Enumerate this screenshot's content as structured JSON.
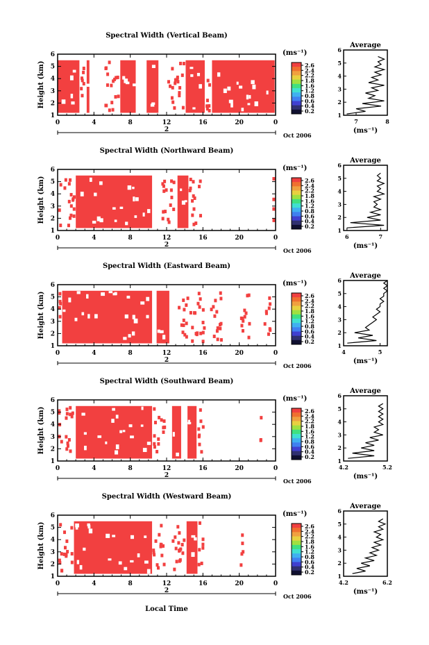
{
  "figure": {
    "x_axis_label": "Local Time",
    "colorbar_unit": "(ms⁻¹)",
    "colorbar_ticks": [
      "2.6",
      "2.4",
      "2.2",
      "1.8",
      "1.6",
      "1.2",
      "0.8",
      "0.6",
      "0.4",
      "0.2"
    ],
    "average_title": "Average",
    "average_unit": "(ms⁻¹)",
    "day_label": "2",
    "month_label": "Oct 2006"
  },
  "chart_data": [
    {
      "type": "heatmap",
      "title": "Spectral Width (Vertical Beam)",
      "ylabel": "Height (km)",
      "xlabel": "",
      "xlim": [
        0,
        24
      ],
      "ylim": [
        1,
        6
      ],
      "xticks": [
        "0",
        "4",
        "8",
        "12",
        "16",
        "20",
        "0"
      ],
      "yticks": [
        "1",
        "2",
        "3",
        "4",
        "5",
        "6"
      ],
      "height_range": [
        1.2,
        5.5
      ],
      "fill_runs": [
        [
          0,
          2.4
        ],
        [
          3.2,
          3.5
        ],
        [
          6.9,
          8.6
        ],
        [
          9.8,
          11.1
        ],
        [
          14.1,
          16.2
        ],
        [
          17.0,
          23.9
        ]
      ],
      "sparse_runs": [
        [
          2.4,
          3.2
        ],
        [
          5.0,
          6.9
        ],
        [
          12.0,
          14.1
        ],
        [
          16.2,
          17.0
        ]
      ],
      "color": "#f24040",
      "average": {
        "xlim": [
          6.6,
          8
        ],
        "xticks": [
          "7",
          "8"
        ],
        "ylim": [
          1,
          6
        ],
        "heights": [
          1.1,
          1.3,
          1.5,
          1.7,
          1.9,
          2.1,
          2.3,
          2.5,
          2.7,
          2.9,
          3.1,
          3.3,
          3.5,
          3.7,
          3.9,
          4.1,
          4.3,
          4.5,
          4.7,
          4.9,
          5.1,
          5.3,
          5.5
        ],
        "values": [
          6.7,
          7.3,
          7.0,
          7.8,
          7.2,
          7.9,
          7.4,
          7.6,
          7.3,
          7.7,
          7.5,
          7.9,
          7.4,
          7.7,
          7.5,
          7.8,
          7.6,
          7.9,
          7.6,
          7.8,
          7.7,
          7.9,
          7.7
        ]
      }
    },
    {
      "type": "heatmap",
      "title": "Spectral Width (Northward Beam)",
      "ylabel": "Height (km)",
      "xlabel": "",
      "xlim": [
        0,
        24
      ],
      "ylim": [
        1,
        6
      ],
      "xticks": [
        "0",
        "4",
        "8",
        "12",
        "16",
        "20",
        "0"
      ],
      "yticks": [
        "1",
        "2",
        "3",
        "4",
        "5",
        "6"
      ],
      "height_range": [
        1.2,
        5.5
      ],
      "fill_runs": [
        [
          2.0,
          10.4
        ],
        [
          13.2,
          14.4
        ]
      ],
      "sparse_runs": [
        [
          0,
          2.0
        ],
        [
          11.4,
          13.2
        ],
        [
          14.4,
          16.0
        ],
        [
          23.6,
          24.0
        ]
      ],
      "color": "#f24040",
      "average": {
        "xlim": [
          5.9,
          7.2
        ],
        "xticks": [
          "6",
          "7"
        ],
        "ylim": [
          1,
          6
        ],
        "heights": [
          1.2,
          1.4,
          1.6,
          1.8,
          2.0,
          2.2,
          2.4,
          2.6,
          2.8,
          3.0,
          3.2,
          3.4,
          3.6,
          3.8,
          4.0,
          4.2,
          4.4,
          4.6,
          4.8,
          5.0,
          5.2,
          5.4
        ],
        "values": [
          6.0,
          7.1,
          6.1,
          7.0,
          6.6,
          7.0,
          6.7,
          7.0,
          6.8,
          6.9,
          6.8,
          7.0,
          6.8,
          7.1,
          6.9,
          7.0,
          6.9,
          7.1,
          6.9,
          7.0,
          6.9,
          7.0
        ]
      }
    },
    {
      "type": "heatmap",
      "title": "Spectral Width (Eastward Beam)",
      "ylabel": "Height (km)",
      "xlabel": "",
      "xlim": [
        0,
        24
      ],
      "ylim": [
        1,
        6
      ],
      "xticks": [
        "0",
        "4",
        "8",
        "12",
        "16",
        "20",
        "0"
      ],
      "yticks": [
        "1",
        "2",
        "3",
        "4",
        "5",
        "6"
      ],
      "height_range": [
        1.2,
        5.5
      ],
      "fill_runs": [
        [
          0.5,
          10.4
        ],
        [
          10.9,
          12.3
        ]
      ],
      "sparse_runs": [
        [
          0,
          0.5
        ],
        [
          13.2,
          16.5
        ],
        [
          16.5,
          18.2
        ],
        [
          20.0,
          21.3
        ],
        [
          22.6,
          23.6
        ]
      ],
      "color": "#f24040",
      "average": {
        "xlim": [
          4.0,
          5.2
        ],
        "xticks": [
          "4",
          "5"
        ],
        "ylim": [
          1,
          6
        ],
        "heights": [
          1.2,
          1.4,
          1.6,
          1.8,
          2.0,
          2.2,
          2.4,
          2.6,
          2.8,
          3.0,
          3.2,
          3.4,
          3.6,
          3.8,
          4.0,
          4.2,
          4.4,
          4.6,
          4.8,
          5.0,
          5.2,
          5.4,
          5.6,
          5.8,
          6.0
        ],
        "values": [
          4.1,
          4.9,
          4.4,
          4.8,
          4.3,
          4.7,
          4.6,
          4.7,
          4.8,
          4.9,
          4.8,
          4.9,
          5.0,
          4.9,
          5.0,
          5.0,
          5.1,
          5.0,
          5.1,
          5.1,
          5.2,
          5.1,
          5.2,
          5.1,
          5.2
        ]
      }
    },
    {
      "type": "heatmap",
      "title": "Spectral Width (Southward Beam)",
      "ylabel": "Height (km)",
      "xlabel": "",
      "xlim": [
        0,
        24
      ],
      "ylim": [
        1,
        6
      ],
      "xticks": [
        "0",
        "4",
        "8",
        "12",
        "16",
        "20",
        "0"
      ],
      "yticks": [
        "1",
        "2",
        "3",
        "4",
        "5",
        "6"
      ],
      "height_range": [
        1.2,
        5.5
      ],
      "fill_runs": [
        [
          2.0,
          10.4
        ],
        [
          12.6,
          13.6
        ],
        [
          14.3,
          15.3
        ]
      ],
      "sparse_runs": [
        [
          0,
          2.0
        ],
        [
          10.4,
          12.0
        ],
        [
          15.3,
          16.2
        ],
        [
          22.2,
          22.5
        ]
      ],
      "color": "#f24040",
      "average": {
        "xlim": [
          4.2,
          5.2
        ],
        "xticks": [
          "4.2",
          "5.2"
        ],
        "ylim": [
          1,
          6
        ],
        "heights": [
          1.2,
          1.4,
          1.6,
          1.8,
          2.0,
          2.2,
          2.4,
          2.6,
          2.8,
          3.0,
          3.2,
          3.4,
          3.6,
          3.8,
          4.0,
          4.2,
          4.4,
          4.6,
          4.8,
          5.0,
          5.2,
          5.4
        ],
        "values": [
          4.3,
          4.9,
          4.4,
          4.9,
          4.6,
          4.9,
          4.7,
          5.0,
          4.8,
          5.1,
          4.9,
          5.0,
          4.9,
          5.1,
          5.0,
          5.1,
          5.0,
          5.1,
          5.0,
          5.1,
          5.0,
          5.1
        ]
      }
    },
    {
      "type": "heatmap",
      "title": "Spectral Width (Westward Beam)",
      "ylabel": "Height (km)",
      "xlabel": "Local Time",
      "xlim": [
        0,
        24
      ],
      "ylim": [
        1,
        6
      ],
      "xticks": [
        "0",
        "4",
        "8",
        "12",
        "16",
        "20",
        "0"
      ],
      "yticks": [
        "1",
        "2",
        "3",
        "4",
        "5",
        "6"
      ],
      "height_range": [
        1.2,
        5.5
      ],
      "fill_runs": [
        [
          1.8,
          10.4
        ],
        [
          14.2,
          15.4
        ]
      ],
      "sparse_runs": [
        [
          0,
          1.8
        ],
        [
          10.4,
          12.0
        ],
        [
          12.4,
          14.2
        ],
        [
          15.4,
          16.2
        ],
        [
          20.0,
          20.6
        ]
      ],
      "color": "#f24040",
      "average": {
        "xlim": [
          4.2,
          6.2
        ],
        "xticks": [
          "4.2",
          "6.2"
        ],
        "ylim": [
          1,
          6
        ],
        "heights": [
          1.2,
          1.4,
          1.6,
          1.8,
          2.0,
          2.2,
          2.4,
          2.6,
          2.8,
          3.0,
          3.2,
          3.4,
          3.6,
          3.8,
          4.0,
          4.2,
          4.4,
          4.6,
          4.8,
          5.0,
          5.2,
          5.4
        ],
        "values": [
          4.6,
          5.2,
          4.8,
          5.4,
          5.0,
          5.6,
          5.2,
          5.7,
          5.4,
          5.8,
          5.5,
          5.9,
          5.6,
          6.0,
          5.7,
          5.9,
          5.6,
          6.0,
          5.8,
          6.1,
          5.8,
          6.0
        ]
      }
    }
  ]
}
